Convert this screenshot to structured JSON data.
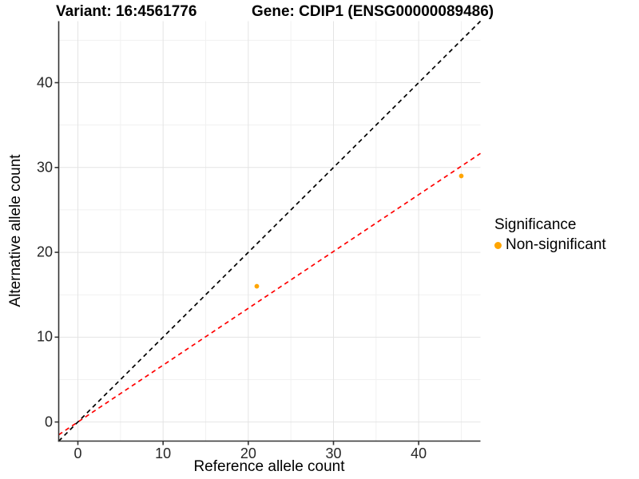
{
  "header": {
    "variant_title": "Variant: 16:4561776",
    "gene_title": "Gene: CDIP1 (ENSG00000089486)"
  },
  "legend": {
    "title": "Significance",
    "items": [
      {
        "label": "Non-significant",
        "color": "#FFA500"
      }
    ]
  },
  "chart_data": {
    "type": "scatter",
    "title_left": "Variant: 16:4561776",
    "title_right": "Gene: CDIP1 (ENSG00000089486)",
    "xlabel": "Reference allele count",
    "ylabel": "Alternative allele count",
    "xlim": [
      -2.25,
      47.25
    ],
    "ylim": [
      -2.25,
      47.25
    ],
    "x_major_ticks": [
      0,
      10,
      20,
      30,
      40
    ],
    "y_major_ticks": [
      0,
      10,
      20,
      30,
      40
    ],
    "x_minor_gridlines": [
      5,
      15,
      25,
      35,
      45
    ],
    "y_minor_gridlines": [
      5,
      15,
      25,
      35,
      45
    ],
    "grid": true,
    "legend_position": "right",
    "points": [
      {
        "x": 21,
        "y": 16,
        "series": "Non-significant"
      },
      {
        "x": 45,
        "y": 29,
        "series": "Non-significant"
      }
    ],
    "lines": [
      {
        "name": "identity-line",
        "slope": 1.0,
        "intercept": 0,
        "color": "#000000",
        "style": "dashed"
      },
      {
        "name": "fit-line",
        "slope": 0.67,
        "intercept": 0,
        "color": "#FF0000",
        "style": "dashed"
      }
    ],
    "colors": {
      "point": "#FFA500",
      "grid_major": "#E4E4E4",
      "grid_minor": "#F1F1F1",
      "axis": "#333333"
    }
  }
}
